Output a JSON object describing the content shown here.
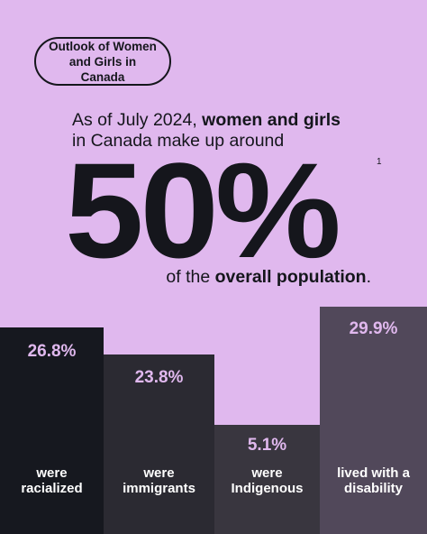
{
  "badge": {
    "title": "Outlook of Women and Girls in Canada"
  },
  "headline": {
    "intro": "As of July 2024,",
    "emphasis": "women and girls",
    "rest": "in Canada make up around",
    "figure": "50%",
    "footnote": "1",
    "suffix": "of the",
    "suffix_emphasis": "overall population",
    "period": "."
  },
  "stats": [
    {
      "value": "26.8%",
      "caption": "were racialized"
    },
    {
      "value": "23.8%",
      "caption": "were immigrants"
    },
    {
      "value": "5.1%",
      "caption": "were Indigenous"
    },
    {
      "value": "29.9%",
      "caption": "lived with a disability"
    }
  ]
}
